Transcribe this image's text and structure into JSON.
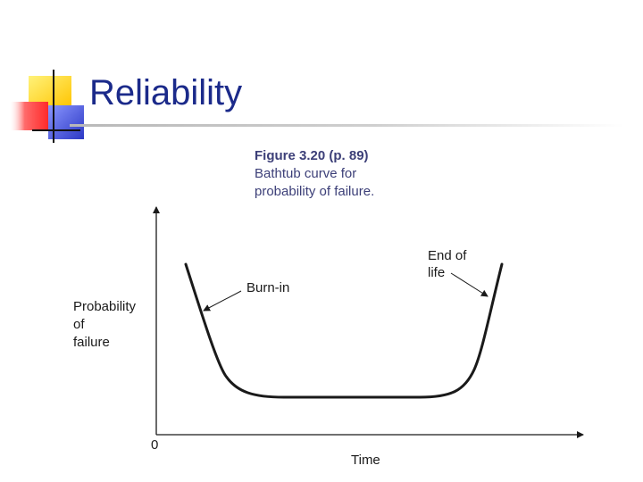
{
  "slide": {
    "title": "Reliability"
  },
  "figure": {
    "number": "Figure 3.20  (p. 89)",
    "caption_lines": [
      "Bathtub curve for",
      "probability of failure."
    ]
  },
  "diagram": {
    "y_label_lines": [
      "Probability",
      "of",
      "failure"
    ],
    "x_label": "Time",
    "origin_label": "0",
    "annotations": {
      "burn_in": "Burn-in",
      "end_of_life_lines": [
        "End of",
        "life"
      ]
    }
  },
  "colors": {
    "title": "#1b2a8a",
    "caption": "#3c3f78",
    "logo_yellow": "#ffd21a",
    "logo_red": "#ff3c3c",
    "logo_blue": "#4050d8"
  }
}
